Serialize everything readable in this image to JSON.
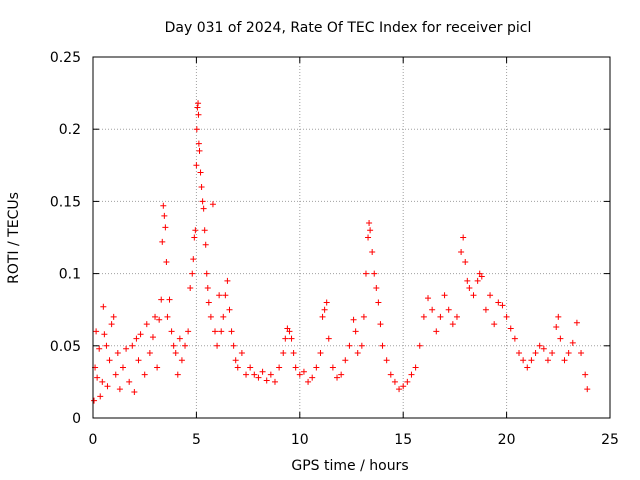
{
  "chart_data": {
    "type": "scatter",
    "title": "Day 031 of 2024, Rate Of TEC Index for receiver picl",
    "xlabel": "GPS time / hours",
    "ylabel": "ROTI / TECUs",
    "xlim": [
      0,
      25
    ],
    "ylim": [
      0,
      0.25
    ],
    "xticks": [
      0,
      5,
      10,
      15,
      20,
      25
    ],
    "xtick_labels": [
      "0",
      "5",
      "10",
      "15",
      "20",
      "25"
    ],
    "yticks": [
      0,
      0.05,
      0.1,
      0.15,
      0.2,
      0.25
    ],
    "ytick_labels": [
      "0",
      "0.05",
      "0.1",
      "0.15",
      "0.2",
      "0.25"
    ],
    "grid": true,
    "marker": "+",
    "color": "#ff0000",
    "series": [
      {
        "points": [
          [
            0.05,
            0.012
          ],
          [
            0.1,
            0.035
          ],
          [
            0.15,
            0.06
          ],
          [
            0.2,
            0.028
          ],
          [
            0.3,
            0.048
          ],
          [
            0.35,
            0.015
          ],
          [
            0.45,
            0.025
          ],
          [
            0.5,
            0.077
          ],
          [
            0.55,
            0.058
          ],
          [
            0.65,
            0.05
          ],
          [
            0.7,
            0.022
          ],
          [
            0.8,
            0.04
          ],
          [
            0.9,
            0.065
          ],
          [
            1.0,
            0.07
          ],
          [
            1.1,
            0.03
          ],
          [
            1.2,
            0.045
          ],
          [
            1.3,
            0.02
          ],
          [
            1.45,
            0.035
          ],
          [
            1.6,
            0.048
          ],
          [
            1.75,
            0.025
          ],
          [
            1.9,
            0.05
          ],
          [
            2.0,
            0.018
          ],
          [
            2.1,
            0.055
          ],
          [
            2.2,
            0.04
          ],
          [
            2.3,
            0.058
          ],
          [
            2.5,
            0.03
          ],
          [
            2.6,
            0.065
          ],
          [
            2.75,
            0.045
          ],
          [
            2.9,
            0.056
          ],
          [
            3.0,
            0.07
          ],
          [
            3.1,
            0.035
          ],
          [
            3.2,
            0.068
          ],
          [
            3.3,
            0.082
          ],
          [
            3.35,
            0.122
          ],
          [
            3.4,
            0.147
          ],
          [
            3.45,
            0.14
          ],
          [
            3.5,
            0.132
          ],
          [
            3.55,
            0.108
          ],
          [
            3.6,
            0.07
          ],
          [
            3.7,
            0.082
          ],
          [
            3.8,
            0.06
          ],
          [
            3.9,
            0.05
          ],
          [
            4.0,
            0.045
          ],
          [
            4.1,
            0.03
          ],
          [
            4.2,
            0.055
          ],
          [
            4.3,
            0.04
          ],
          [
            4.45,
            0.05
          ],
          [
            4.6,
            0.06
          ],
          [
            4.7,
            0.09
          ],
          [
            4.8,
            0.1
          ],
          [
            4.85,
            0.11
          ],
          [
            4.9,
            0.125
          ],
          [
            4.95,
            0.13
          ],
          [
            5.0,
            0.175
          ],
          [
            5.02,
            0.2
          ],
          [
            5.05,
            0.215
          ],
          [
            5.08,
            0.218
          ],
          [
            5.1,
            0.21
          ],
          [
            5.12,
            0.19
          ],
          [
            5.15,
            0.185
          ],
          [
            5.2,
            0.17
          ],
          [
            5.25,
            0.16
          ],
          [
            5.3,
            0.15
          ],
          [
            5.35,
            0.145
          ],
          [
            5.4,
            0.13
          ],
          [
            5.45,
            0.12
          ],
          [
            5.5,
            0.1
          ],
          [
            5.55,
            0.09
          ],
          [
            5.6,
            0.08
          ],
          [
            5.7,
            0.07
          ],
          [
            5.8,
            0.148
          ],
          [
            5.9,
            0.06
          ],
          [
            6.0,
            0.05
          ],
          [
            6.1,
            0.085
          ],
          [
            6.2,
            0.06
          ],
          [
            6.3,
            0.07
          ],
          [
            6.4,
            0.085
          ],
          [
            6.5,
            0.095
          ],
          [
            6.6,
            0.075
          ],
          [
            6.7,
            0.06
          ],
          [
            6.8,
            0.05
          ],
          [
            6.9,
            0.04
          ],
          [
            7.0,
            0.035
          ],
          [
            7.2,
            0.045
          ],
          [
            7.4,
            0.03
          ],
          [
            7.6,
            0.035
          ],
          [
            7.8,
            0.03
          ],
          [
            8.0,
            0.028
          ],
          [
            8.2,
            0.032
          ],
          [
            8.4,
            0.026
          ],
          [
            8.6,
            0.03
          ],
          [
            8.8,
            0.025
          ],
          [
            9.0,
            0.035
          ],
          [
            9.2,
            0.045
          ],
          [
            9.3,
            0.055
          ],
          [
            9.4,
            0.062
          ],
          [
            9.5,
            0.06
          ],
          [
            9.6,
            0.055
          ],
          [
            9.7,
            0.045
          ],
          [
            9.8,
            0.035
          ],
          [
            10.0,
            0.03
          ],
          [
            10.2,
            0.032
          ],
          [
            10.4,
            0.025
          ],
          [
            10.6,
            0.028
          ],
          [
            10.8,
            0.035
          ],
          [
            11.0,
            0.045
          ],
          [
            11.1,
            0.07
          ],
          [
            11.2,
            0.075
          ],
          [
            11.3,
            0.08
          ],
          [
            11.4,
            0.055
          ],
          [
            11.6,
            0.035
          ],
          [
            11.8,
            0.028
          ],
          [
            12.0,
            0.03
          ],
          [
            12.2,
            0.04
          ],
          [
            12.4,
            0.05
          ],
          [
            12.6,
            0.068
          ],
          [
            12.7,
            0.06
          ],
          [
            12.8,
            0.045
          ],
          [
            13.0,
            0.05
          ],
          [
            13.1,
            0.07
          ],
          [
            13.2,
            0.1
          ],
          [
            13.3,
            0.125
          ],
          [
            13.35,
            0.135
          ],
          [
            13.4,
            0.13
          ],
          [
            13.5,
            0.115
          ],
          [
            13.6,
            0.1
          ],
          [
            13.7,
            0.09
          ],
          [
            13.8,
            0.08
          ],
          [
            13.9,
            0.065
          ],
          [
            14.0,
            0.05
          ],
          [
            14.2,
            0.04
          ],
          [
            14.4,
            0.03
          ],
          [
            14.6,
            0.025
          ],
          [
            14.8,
            0.02
          ],
          [
            15.0,
            0.022
          ],
          [
            15.2,
            0.025
          ],
          [
            15.4,
            0.03
          ],
          [
            15.6,
            0.035
          ],
          [
            15.8,
            0.05
          ],
          [
            16.0,
            0.07
          ],
          [
            16.2,
            0.083
          ],
          [
            16.4,
            0.075
          ],
          [
            16.6,
            0.06
          ],
          [
            16.8,
            0.07
          ],
          [
            17.0,
            0.085
          ],
          [
            17.2,
            0.075
          ],
          [
            17.4,
            0.065
          ],
          [
            17.6,
            0.07
          ],
          [
            17.8,
            0.115
          ],
          [
            17.9,
            0.125
          ],
          [
            18.0,
            0.108
          ],
          [
            18.1,
            0.095
          ],
          [
            18.2,
            0.09
          ],
          [
            18.4,
            0.085
          ],
          [
            18.6,
            0.095
          ],
          [
            18.7,
            0.1
          ],
          [
            18.8,
            0.098
          ],
          [
            19.0,
            0.075
          ],
          [
            19.2,
            0.085
          ],
          [
            19.4,
            0.065
          ],
          [
            19.6,
            0.08
          ],
          [
            19.8,
            0.078
          ],
          [
            20.0,
            0.07
          ],
          [
            20.2,
            0.062
          ],
          [
            20.4,
            0.055
          ],
          [
            20.6,
            0.045
          ],
          [
            20.8,
            0.04
          ],
          [
            21.0,
            0.035
          ],
          [
            21.2,
            0.04
          ],
          [
            21.4,
            0.045
          ],
          [
            21.6,
            0.05
          ],
          [
            21.8,
            0.048
          ],
          [
            22.0,
            0.04
          ],
          [
            22.2,
            0.045
          ],
          [
            22.4,
            0.063
          ],
          [
            22.5,
            0.07
          ],
          [
            22.6,
            0.055
          ],
          [
            22.8,
            0.04
          ],
          [
            23.0,
            0.045
          ],
          [
            23.2,
            0.052
          ],
          [
            23.4,
            0.066
          ],
          [
            23.6,
            0.045
          ],
          [
            23.8,
            0.03
          ],
          [
            23.9,
            0.02
          ]
        ]
      }
    ]
  }
}
